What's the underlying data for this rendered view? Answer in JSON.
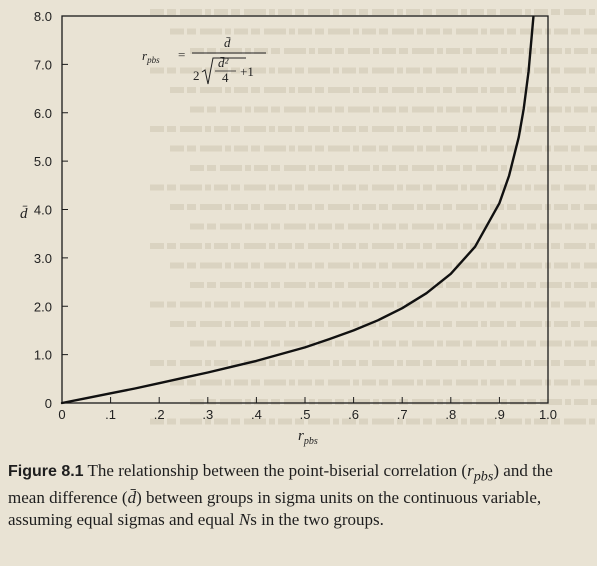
{
  "chart_data": {
    "type": "line",
    "title": "",
    "xlabel": "r",
    "xlabel_sub": "pbs",
    "ylabel": "d̄",
    "xlim": [
      0,
      1.0
    ],
    "ylim": [
      0,
      8.0
    ],
    "x_ticks": [
      0,
      0.1,
      0.2,
      0.3,
      0.4,
      0.5,
      0.6,
      0.7,
      0.8,
      0.9,
      1.0
    ],
    "x_tick_labels": [
      "0",
      ".1",
      ".2",
      ".3",
      ".4",
      ".5",
      ".6",
      ".7",
      ".8",
      ".9",
      "1.0"
    ],
    "y_ticks": [
      0,
      1,
      2,
      3,
      4,
      5,
      6,
      7,
      8
    ],
    "y_tick_labels": [
      "0",
      "1.0",
      "2.0",
      "3.0",
      "4.0",
      "5.0",
      "6.0",
      "7.0",
      "8.0"
    ],
    "grid": false,
    "series": [
      {
        "x": [
          0,
          0.05,
          0.1,
          0.15,
          0.2,
          0.25,
          0.3,
          0.35,
          0.4,
          0.45,
          0.5,
          0.55,
          0.6,
          0.65,
          0.7,
          0.75,
          0.8,
          0.85,
          0.9,
          0.92,
          0.94,
          0.95,
          0.96,
          0.97
        ],
        "y": [
          0,
          0.1,
          0.2,
          0.3,
          0.41,
          0.52,
          0.63,
          0.75,
          0.87,
          1.01,
          1.15,
          1.32,
          1.5,
          1.71,
          1.96,
          2.27,
          2.67,
          3.23,
          4.13,
          4.7,
          5.5,
          6.08,
          6.86,
          7.98
        ]
      }
    ],
    "annotation": {
      "lhs": "r",
      "lhs_sub": "pbs",
      "equals": "=",
      "numerator": "d̄",
      "den_coef": "2",
      "den_frac_num": "d̄²",
      "den_frac_den": "4",
      "den_plus": "+1"
    }
  },
  "caption": {
    "label": "Figure 8.1",
    "text_1": " The relationship between the point-biserial correlation (",
    "r_sym": "r",
    "r_sub": "pbs",
    "text_2": ") and the mean difference (",
    "d_sym": "d̄",
    "text_3": ") between groups in sigma units on the continuous variable, assuming equal sigmas and equal ",
    "n_sym": "N",
    "text_4": "s in the two groups."
  }
}
